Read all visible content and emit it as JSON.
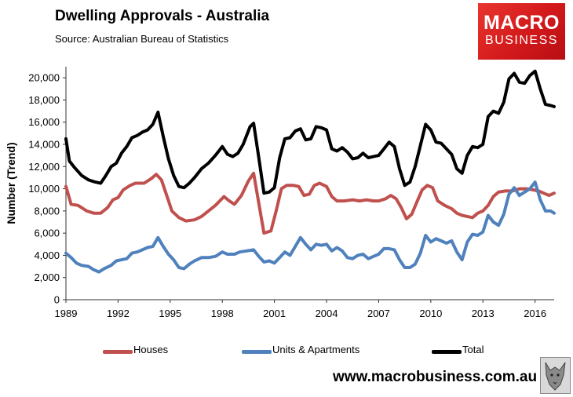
{
  "header": {
    "title": "Dwelling Approvals - Australia",
    "source": "Source:   Australian Bureau of Statistics"
  },
  "logo": {
    "line1": "MACRO",
    "line2": "BUSINESS"
  },
  "footer": {
    "url": "www.macrobusiness.com.au"
  },
  "colors": {
    "houses": "#c0504d",
    "units": "#4f81bd",
    "total": "#000000"
  },
  "chart_data": {
    "type": "line",
    "ylabel": "Number (Trend)",
    "ylim": [
      0,
      21000
    ],
    "xlim": [
      1989,
      2017.1
    ],
    "yticks": [
      0,
      2000,
      4000,
      6000,
      8000,
      10000,
      12000,
      14000,
      16000,
      18000,
      20000
    ],
    "ytick_labels": [
      "0",
      "2,000",
      "4,000",
      "6,000",
      "8,000",
      "10,000",
      "12,000",
      "14,000",
      "16,000",
      "18,000",
      "20,000"
    ],
    "xticks": [
      1989,
      1992,
      1995,
      1998,
      2001,
      2004,
      2007,
      2010,
      2013,
      2016
    ],
    "xtick_labels": [
      "1989",
      "1992",
      "1995",
      "1998",
      "2001",
      "2004",
      "2007",
      "2010",
      "2013",
      "2016"
    ],
    "grid": false,
    "legend_position": "bottom",
    "series": [
      {
        "name": "Houses",
        "key": "houses",
        "points": [
          [
            1989.0,
            10200
          ],
          [
            1989.3,
            8600
          ],
          [
            1989.7,
            8500
          ],
          [
            1990.2,
            8000
          ],
          [
            1990.6,
            7800
          ],
          [
            1991.0,
            7800
          ],
          [
            1991.4,
            8300
          ],
          [
            1991.7,
            9000
          ],
          [
            1992.0,
            9200
          ],
          [
            1992.3,
            9900
          ],
          [
            1992.7,
            10300
          ],
          [
            1993.0,
            10500
          ],
          [
            1993.5,
            10500
          ],
          [
            1993.9,
            10900
          ],
          [
            1994.2,
            11300
          ],
          [
            1994.5,
            10800
          ],
          [
            1994.8,
            9400
          ],
          [
            1995.1,
            8000
          ],
          [
            1995.5,
            7400
          ],
          [
            1995.9,
            7100
          ],
          [
            1996.4,
            7200
          ],
          [
            1996.8,
            7500
          ],
          [
            1997.2,
            8000
          ],
          [
            1997.6,
            8500
          ],
          [
            1998.1,
            9300
          ],
          [
            1998.4,
            8900
          ],
          [
            1998.7,
            8600
          ],
          [
            1999.1,
            9400
          ],
          [
            1999.5,
            10700
          ],
          [
            1999.8,
            11400
          ],
          [
            2000.1,
            8700
          ],
          [
            2000.4,
            6000
          ],
          [
            2000.8,
            6200
          ],
          [
            2001.1,
            8000
          ],
          [
            2001.4,
            10000
          ],
          [
            2001.7,
            10300
          ],
          [
            2002.1,
            10300
          ],
          [
            2002.4,
            10200
          ],
          [
            2002.7,
            9400
          ],
          [
            2003.0,
            9500
          ],
          [
            2003.3,
            10300
          ],
          [
            2003.6,
            10500
          ],
          [
            2004.0,
            10200
          ],
          [
            2004.3,
            9300
          ],
          [
            2004.6,
            8900
          ],
          [
            2005.0,
            8900
          ],
          [
            2005.5,
            9000
          ],
          [
            2005.9,
            8900
          ],
          [
            2006.3,
            9000
          ],
          [
            2006.7,
            8900
          ],
          [
            2007.0,
            8900
          ],
          [
            2007.4,
            9100
          ],
          [
            2007.7,
            9400
          ],
          [
            2008.0,
            9100
          ],
          [
            2008.3,
            8300
          ],
          [
            2008.6,
            7300
          ],
          [
            2008.9,
            7700
          ],
          [
            2009.2,
            8800
          ],
          [
            2009.5,
            9900
          ],
          [
            2009.8,
            10300
          ],
          [
            2010.1,
            10100
          ],
          [
            2010.4,
            8900
          ],
          [
            2010.8,
            8500
          ],
          [
            2011.2,
            8200
          ],
          [
            2011.5,
            7800
          ],
          [
            2011.8,
            7600
          ],
          [
            2012.1,
            7500
          ],
          [
            2012.4,
            7400
          ],
          [
            2012.7,
            7800
          ],
          [
            2013.0,
            8000
          ],
          [
            2013.3,
            8500
          ],
          [
            2013.6,
            9300
          ],
          [
            2013.9,
            9700
          ],
          [
            2014.3,
            9800
          ],
          [
            2014.7,
            9800
          ],
          [
            2015.1,
            10000
          ],
          [
            2015.5,
            10000
          ],
          [
            2015.9,
            9900
          ],
          [
            2016.2,
            9800
          ],
          [
            2016.5,
            9600
          ],
          [
            2016.8,
            9400
          ],
          [
            2017.1,
            9600
          ]
        ]
      },
      {
        "name": "Units & Apartments",
        "key": "units",
        "points": [
          [
            1989.0,
            4200
          ],
          [
            1989.3,
            3800
          ],
          [
            1989.6,
            3300
          ],
          [
            1989.9,
            3100
          ],
          [
            1990.3,
            3000
          ],
          [
            1990.6,
            2700
          ],
          [
            1990.9,
            2500
          ],
          [
            1991.2,
            2800
          ],
          [
            1991.6,
            3100
          ],
          [
            1991.9,
            3500
          ],
          [
            1992.2,
            3600
          ],
          [
            1992.5,
            3700
          ],
          [
            1992.8,
            4200
          ],
          [
            1993.1,
            4300
          ],
          [
            1993.4,
            4500
          ],
          [
            1993.7,
            4700
          ],
          [
            1994.0,
            4800
          ],
          [
            1994.3,
            5600
          ],
          [
            1994.6,
            4800
          ],
          [
            1994.9,
            4100
          ],
          [
            1995.2,
            3600
          ],
          [
            1995.5,
            2900
          ],
          [
            1995.8,
            2800
          ],
          [
            1996.1,
            3200
          ],
          [
            1996.4,
            3500
          ],
          [
            1996.8,
            3800
          ],
          [
            1997.2,
            3800
          ],
          [
            1997.6,
            3900
          ],
          [
            1998.0,
            4300
          ],
          [
            1998.3,
            4100
          ],
          [
            1998.7,
            4100
          ],
          [
            1999.0,
            4300
          ],
          [
            1999.4,
            4400
          ],
          [
            1999.8,
            4500
          ],
          [
            2000.1,
            3900
          ],
          [
            2000.4,
            3400
          ],
          [
            2000.7,
            3500
          ],
          [
            2001.0,
            3300
          ],
          [
            2001.3,
            3800
          ],
          [
            2001.6,
            4300
          ],
          [
            2001.9,
            4000
          ],
          [
            2002.2,
            4800
          ],
          [
            2002.5,
            5600
          ],
          [
            2002.8,
            5000
          ],
          [
            2003.1,
            4500
          ],
          [
            2003.4,
            5000
          ],
          [
            2003.7,
            4900
          ],
          [
            2004.0,
            5000
          ],
          [
            2004.3,
            4400
          ],
          [
            2004.6,
            4700
          ],
          [
            2004.9,
            4400
          ],
          [
            2005.2,
            3800
          ],
          [
            2005.5,
            3700
          ],
          [
            2005.8,
            4000
          ],
          [
            2006.1,
            4100
          ],
          [
            2006.4,
            3700
          ],
          [
            2006.7,
            3900
          ],
          [
            2007.0,
            4100
          ],
          [
            2007.3,
            4600
          ],
          [
            2007.6,
            4600
          ],
          [
            2007.9,
            4500
          ],
          [
            2008.2,
            3600
          ],
          [
            2008.5,
            2900
          ],
          [
            2008.8,
            2900
          ],
          [
            2009.1,
            3200
          ],
          [
            2009.4,
            4200
          ],
          [
            2009.7,
            5800
          ],
          [
            2010.0,
            5200
          ],
          [
            2010.3,
            5500
          ],
          [
            2010.6,
            5300
          ],
          [
            2010.9,
            5100
          ],
          [
            2011.2,
            5300
          ],
          [
            2011.5,
            4300
          ],
          [
            2011.8,
            3600
          ],
          [
            2012.1,
            5200
          ],
          [
            2012.4,
            5900
          ],
          [
            2012.7,
            5800
          ],
          [
            2013.0,
            6100
          ],
          [
            2013.3,
            7600
          ],
          [
            2013.6,
            7000
          ],
          [
            2013.9,
            6700
          ],
          [
            2014.2,
            7700
          ],
          [
            2014.5,
            9500
          ],
          [
            2014.8,
            10100
          ],
          [
            2015.1,
            9400
          ],
          [
            2015.4,
            9700
          ],
          [
            2015.7,
            10000
          ],
          [
            2016.0,
            10600
          ],
          [
            2016.3,
            9000
          ],
          [
            2016.6,
            8000
          ],
          [
            2016.9,
            8000
          ],
          [
            2017.1,
            7800
          ]
        ]
      },
      {
        "name": "Total",
        "key": "total",
        "points": [
          [
            1989.0,
            14500
          ],
          [
            1989.2,
            12500
          ],
          [
            1989.5,
            11900
          ],
          [
            1989.9,
            11200
          ],
          [
            1990.3,
            10800
          ],
          [
            1990.7,
            10600
          ],
          [
            1991.0,
            10500
          ],
          [
            1991.3,
            11200
          ],
          [
            1991.6,
            12000
          ],
          [
            1991.9,
            12300
          ],
          [
            1992.2,
            13200
          ],
          [
            1992.5,
            13800
          ],
          [
            1992.8,
            14600
          ],
          [
            1993.1,
            14800
          ],
          [
            1993.4,
            15100
          ],
          [
            1993.7,
            15300
          ],
          [
            1994.0,
            15800
          ],
          [
            1994.3,
            16900
          ],
          [
            1994.6,
            14700
          ],
          [
            1994.9,
            12700
          ],
          [
            1995.2,
            11200
          ],
          [
            1995.5,
            10200
          ],
          [
            1995.8,
            10100
          ],
          [
            1996.1,
            10500
          ],
          [
            1996.4,
            11000
          ],
          [
            1996.8,
            11800
          ],
          [
            1997.2,
            12300
          ],
          [
            1997.6,
            13000
          ],
          [
            1998.0,
            13800
          ],
          [
            1998.3,
            13100
          ],
          [
            1998.6,
            12900
          ],
          [
            1998.9,
            13200
          ],
          [
            1999.2,
            14000
          ],
          [
            1999.6,
            15600
          ],
          [
            1999.8,
            15900
          ],
          [
            2000.1,
            12800
          ],
          [
            2000.4,
            9600
          ],
          [
            2000.7,
            9700
          ],
          [
            2001.0,
            10100
          ],
          [
            2001.3,
            12800
          ],
          [
            2001.6,
            14500
          ],
          [
            2001.9,
            14600
          ],
          [
            2002.2,
            15200
          ],
          [
            2002.5,
            15400
          ],
          [
            2002.8,
            14400
          ],
          [
            2003.1,
            14500
          ],
          [
            2003.4,
            15600
          ],
          [
            2003.7,
            15500
          ],
          [
            2004.0,
            15300
          ],
          [
            2004.3,
            13600
          ],
          [
            2004.6,
            13400
          ],
          [
            2004.9,
            13700
          ],
          [
            2005.2,
            13300
          ],
          [
            2005.5,
            12700
          ],
          [
            2005.8,
            12800
          ],
          [
            2006.1,
            13200
          ],
          [
            2006.4,
            12800
          ],
          [
            2006.7,
            12900
          ],
          [
            2007.0,
            13000
          ],
          [
            2007.3,
            13600
          ],
          [
            2007.6,
            14200
          ],
          [
            2007.9,
            13800
          ],
          [
            2008.2,
            11800
          ],
          [
            2008.5,
            10300
          ],
          [
            2008.8,
            10600
          ],
          [
            2009.1,
            12000
          ],
          [
            2009.4,
            13900
          ],
          [
            2009.7,
            15800
          ],
          [
            2010.0,
            15300
          ],
          [
            2010.3,
            14200
          ],
          [
            2010.6,
            14100
          ],
          [
            2010.9,
            13600
          ],
          [
            2011.2,
            13100
          ],
          [
            2011.5,
            11800
          ],
          [
            2011.8,
            11400
          ],
          [
            2012.1,
            13000
          ],
          [
            2012.4,
            13800
          ],
          [
            2012.7,
            13700
          ],
          [
            2013.0,
            14000
          ],
          [
            2013.3,
            16500
          ],
          [
            2013.6,
            17000
          ],
          [
            2013.9,
            16800
          ],
          [
            2014.2,
            17800
          ],
          [
            2014.5,
            19900
          ],
          [
            2014.8,
            20400
          ],
          [
            2015.1,
            19600
          ],
          [
            2015.4,
            19500
          ],
          [
            2015.7,
            20200
          ],
          [
            2016.0,
            20600
          ],
          [
            2016.3,
            19000
          ],
          [
            2016.6,
            17600
          ],
          [
            2016.9,
            17500
          ],
          [
            2017.1,
            17400
          ]
        ]
      }
    ]
  }
}
